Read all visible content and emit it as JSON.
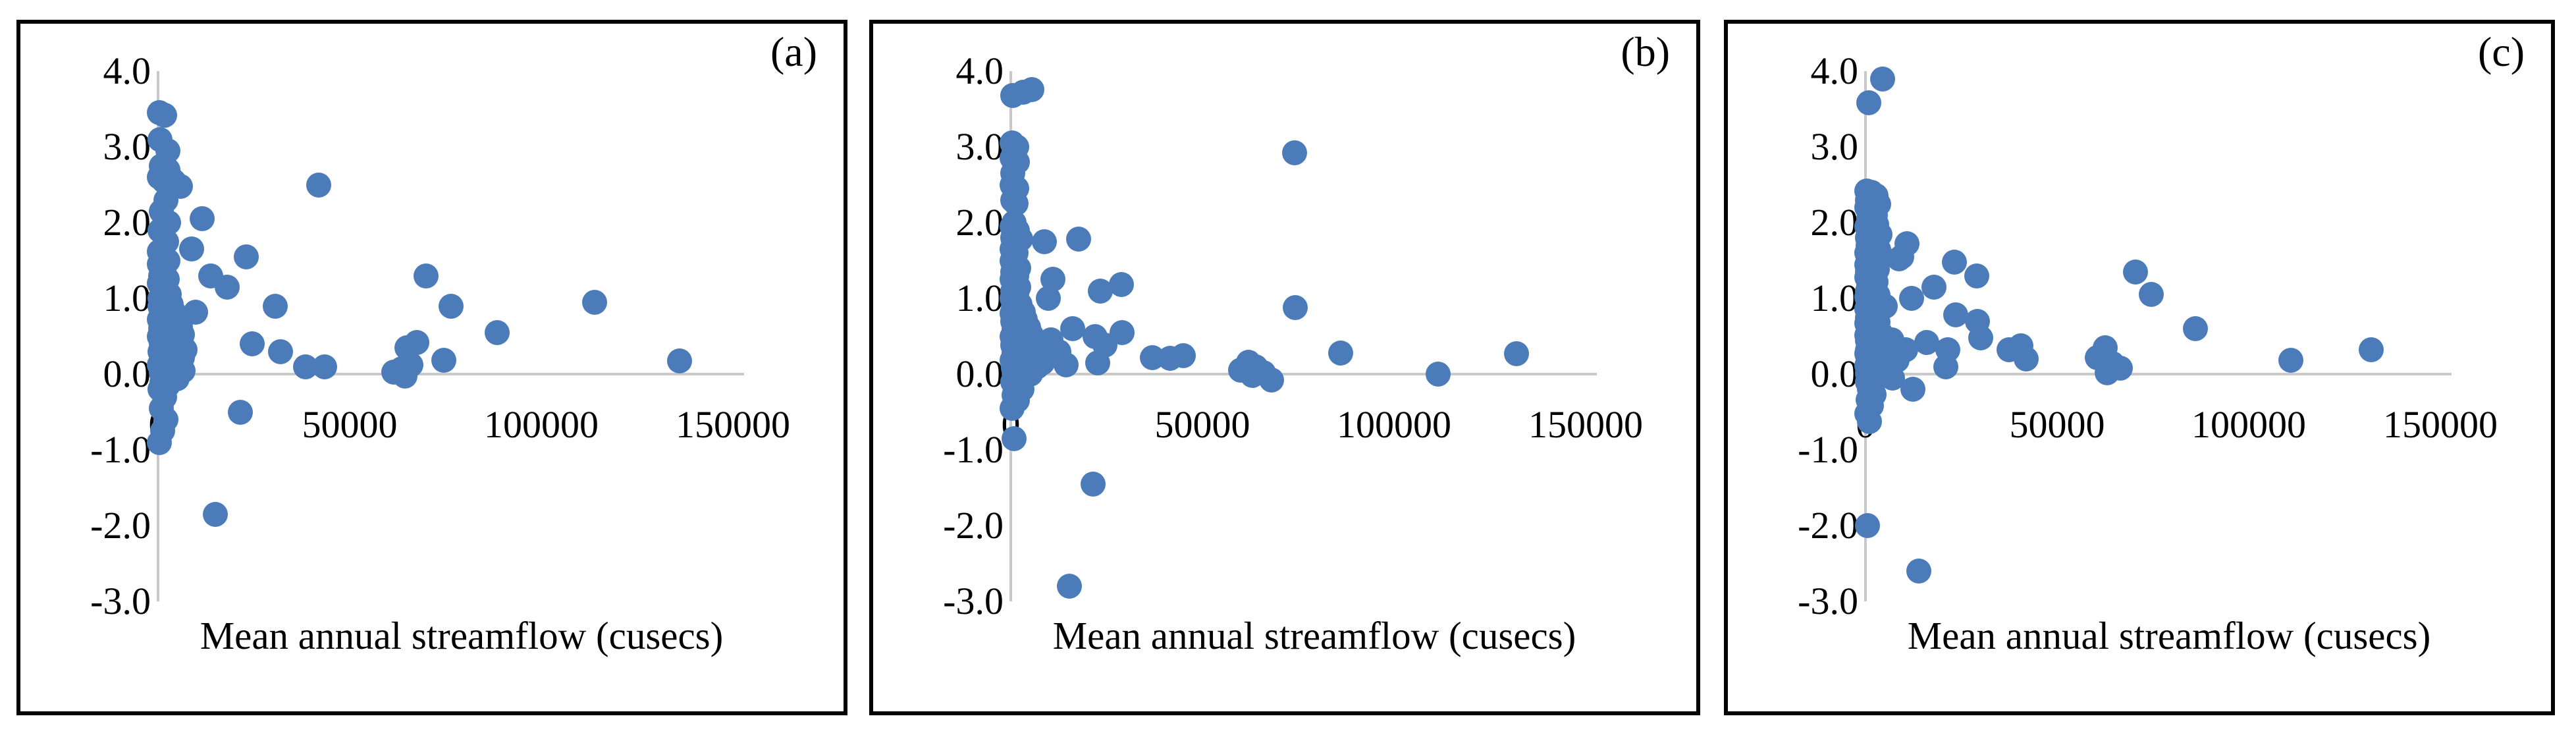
{
  "figure": {
    "marker_color": "#4B7CB9",
    "axis_line_color": "#C9C9C9",
    "border_color": "#000000",
    "background_color": "#FFFFFF"
  },
  "chart_data": [
    {
      "type": "scatter",
      "panel_label": "(a)",
      "xlabel": "Mean annual streamflow (cusecs)",
      "x_tick_labels": [
        "0",
        "50000",
        "100000",
        "150000"
      ],
      "y_tick_labels": [
        "4.0",
        "3.0",
        "2.0",
        "1.0",
        "0.0",
        "-1.0",
        "-2.0",
        "-3.0"
      ],
      "xlim": [
        0,
        153000
      ],
      "ylim": [
        -3.0,
        4.0
      ],
      "grid": false,
      "legend": "none",
      "points": [
        [
          300,
          3.45
        ],
        [
          1800,
          3.42
        ],
        [
          500,
          3.1
        ],
        [
          2500,
          2.95
        ],
        [
          900,
          2.75
        ],
        [
          2600,
          2.7
        ],
        [
          400,
          2.6
        ],
        [
          3500,
          2.58
        ],
        [
          1500,
          2.55
        ],
        [
          4200,
          2.55
        ],
        [
          5800,
          2.48
        ],
        [
          2000,
          2.3
        ],
        [
          800,
          2.15
        ],
        [
          2700,
          2.0
        ],
        [
          600,
          1.9
        ],
        [
          2200,
          1.75
        ],
        [
          300,
          1.62
        ],
        [
          1200,
          1.55
        ],
        [
          2600,
          1.5
        ],
        [
          400,
          1.45
        ],
        [
          1500,
          1.35
        ],
        [
          700,
          1.3
        ],
        [
          2400,
          1.25
        ],
        [
          300,
          1.2
        ],
        [
          1100,
          1.15
        ],
        [
          1900,
          1.1
        ],
        [
          2900,
          1.05
        ],
        [
          500,
          1.0
        ],
        [
          1400,
          0.98
        ],
        [
          2300,
          0.95
        ],
        [
          3400,
          0.92
        ],
        [
          600,
          0.9
        ],
        [
          1600,
          0.88
        ],
        [
          2800,
          0.85
        ],
        [
          4200,
          0.82
        ],
        [
          800,
          0.8
        ],
        [
          2000,
          0.78
        ],
        [
          3600,
          0.75
        ],
        [
          5200,
          0.72
        ],
        [
          300,
          0.72
        ],
        [
          1200,
          0.7
        ],
        [
          2500,
          0.68
        ],
        [
          4000,
          0.66
        ],
        [
          5800,
          0.63
        ],
        [
          700,
          0.6
        ],
        [
          1800,
          0.58
        ],
        [
          3200,
          0.56
        ],
        [
          4800,
          0.54
        ],
        [
          6400,
          0.52
        ],
        [
          400,
          0.5
        ],
        [
          1500,
          0.48
        ],
        [
          2900,
          0.46
        ],
        [
          4400,
          0.44
        ],
        [
          6000,
          0.42
        ],
        [
          900,
          0.4
        ],
        [
          2100,
          0.38
        ],
        [
          3700,
          0.36
        ],
        [
          5400,
          0.34
        ],
        [
          7000,
          0.32
        ],
        [
          500,
          0.3
        ],
        [
          1600,
          0.28
        ],
        [
          3100,
          0.26
        ],
        [
          4700,
          0.24
        ],
        [
          6300,
          0.22
        ],
        [
          1000,
          0.2
        ],
        [
          2300,
          0.18
        ],
        [
          3900,
          0.16
        ],
        [
          5600,
          0.14
        ],
        [
          300,
          0.12
        ],
        [
          1300,
          0.1
        ],
        [
          2700,
          0.08
        ],
        [
          4300,
          0.06
        ],
        [
          6600,
          0.04
        ],
        [
          800,
          0.02
        ],
        [
          1900,
          0.0
        ],
        [
          3400,
          -0.03
        ],
        [
          5000,
          -0.06
        ],
        [
          1100,
          -0.1
        ],
        [
          2500,
          -0.15
        ],
        [
          600,
          -0.2
        ],
        [
          1700,
          -0.3
        ],
        [
          900,
          -0.45
        ],
        [
          2000,
          -0.6
        ],
        [
          1200,
          -0.75
        ],
        [
          400,
          -0.9
        ],
        [
          8700,
          1.65
        ],
        [
          11500,
          2.05
        ],
        [
          13700,
          1.3
        ],
        [
          18000,
          1.15
        ],
        [
          23000,
          1.55
        ],
        [
          42000,
          2.5
        ],
        [
          9800,
          0.82
        ],
        [
          30500,
          0.9
        ],
        [
          24500,
          0.4
        ],
        [
          32000,
          0.3
        ],
        [
          38500,
          0.1
        ],
        [
          43500,
          0.1
        ],
        [
          21500,
          -0.5
        ],
        [
          15000,
          -1.85
        ],
        [
          61500,
          0.03
        ],
        [
          63500,
          0.07
        ],
        [
          66000,
          0.12
        ],
        [
          64500,
          -0.03
        ],
        [
          67500,
          0.42
        ],
        [
          65000,
          0.35
        ],
        [
          70000,
          1.3
        ],
        [
          74500,
          0.18
        ],
        [
          76500,
          0.9
        ],
        [
          88500,
          0.55
        ],
        [
          114000,
          0.95
        ],
        [
          136000,
          0.17
        ]
      ]
    },
    {
      "type": "scatter",
      "panel_label": "(b)",
      "xlabel": "Mean annual streamflow (cusecs)",
      "x_tick_labels": [
        "0",
        "50000",
        "100000",
        "150000"
      ],
      "y_tick_labels": [
        "4.0",
        "3.0",
        "2.0",
        "1.0",
        "0.0",
        "-1.0",
        "-2.0",
        "-3.0"
      ],
      "xlim": [
        0,
        153000
      ],
      "ylim": [
        -3.0,
        4.0
      ],
      "grid": false,
      "legend": "none",
      "points": [
        [
          600,
          3.68
        ],
        [
          3300,
          3.72
        ],
        [
          5500,
          3.76
        ],
        [
          300,
          3.05
        ],
        [
          1500,
          3.0
        ],
        [
          400,
          2.85
        ],
        [
          1800,
          2.8
        ],
        [
          600,
          2.65
        ],
        [
          300,
          2.5
        ],
        [
          1600,
          2.45
        ],
        [
          500,
          2.3
        ],
        [
          1300,
          2.25
        ],
        [
          800,
          2.0
        ],
        [
          300,
          1.95
        ],
        [
          1700,
          1.9
        ],
        [
          600,
          1.8
        ],
        [
          2500,
          1.78
        ],
        [
          400,
          1.65
        ],
        [
          1400,
          1.6
        ],
        [
          300,
          1.5
        ],
        [
          1100,
          1.45
        ],
        [
          2100,
          1.4
        ],
        [
          500,
          1.35
        ],
        [
          1600,
          1.3
        ],
        [
          300,
          1.25
        ],
        [
          900,
          1.2
        ],
        [
          2000,
          1.15
        ],
        [
          600,
          1.1
        ],
        [
          1500,
          1.05
        ],
        [
          400,
          1.0
        ],
        [
          1200,
          0.95
        ],
        [
          2400,
          0.92
        ],
        [
          700,
          0.88
        ],
        [
          1800,
          0.85
        ],
        [
          3200,
          0.82
        ],
        [
          300,
          0.8
        ],
        [
          1000,
          0.78
        ],
        [
          2200,
          0.75
        ],
        [
          3800,
          0.72
        ],
        [
          500,
          0.7
        ],
        [
          1400,
          0.68
        ],
        [
          2800,
          0.65
        ],
        [
          4600,
          0.62
        ],
        [
          800,
          0.6
        ],
        [
          1900,
          0.58
        ],
        [
          3400,
          0.55
        ],
        [
          5400,
          0.52
        ],
        [
          300,
          0.5
        ],
        [
          1100,
          0.48
        ],
        [
          2400,
          0.45
        ],
        [
          4000,
          0.42
        ],
        [
          6200,
          0.4
        ],
        [
          600,
          0.38
        ],
        [
          1600,
          0.35
        ],
        [
          3000,
          0.32
        ],
        [
          5000,
          0.3
        ],
        [
          7200,
          0.3
        ],
        [
          900,
          0.28
        ],
        [
          2000,
          0.25
        ],
        [
          3600,
          0.22
        ],
        [
          5800,
          0.2
        ],
        [
          400,
          0.18
        ],
        [
          1300,
          0.15
        ],
        [
          2700,
          0.12
        ],
        [
          4400,
          0.1
        ],
        [
          6800,
          0.1
        ],
        [
          8200,
          0.15
        ],
        [
          700,
          0.08
        ],
        [
          1700,
          0.05
        ],
        [
          3200,
          0.02
        ],
        [
          5200,
          0.0
        ],
        [
          1000,
          -0.02
        ],
        [
          2200,
          -0.05
        ],
        [
          500,
          -0.1
        ],
        [
          1500,
          -0.15
        ],
        [
          2900,
          -0.2
        ],
        [
          800,
          -0.28
        ],
        [
          1800,
          -0.35
        ],
        [
          400,
          -0.45
        ],
        [
          8800,
          1.75
        ],
        [
          17700,
          1.78
        ],
        [
          11000,
          1.25
        ],
        [
          9800,
          1.0
        ],
        [
          23300,
          1.1
        ],
        [
          28800,
          1.18
        ],
        [
          16200,
          0.6
        ],
        [
          22000,
          0.5
        ],
        [
          29000,
          0.55
        ],
        [
          10500,
          0.45
        ],
        [
          12500,
          0.3
        ],
        [
          14500,
          0.12
        ],
        [
          22700,
          0.15
        ],
        [
          24500,
          0.38
        ],
        [
          37000,
          0.22
        ],
        [
          41500,
          0.21
        ],
        [
          45000,
          0.24
        ],
        [
          60000,
          0.05
        ],
        [
          62000,
          0.16
        ],
        [
          64000,
          0.1
        ],
        [
          66000,
          0.02
        ],
        [
          68000,
          -0.08
        ],
        [
          63000,
          -0.02
        ],
        [
          74000,
          2.92
        ],
        [
          74200,
          0.88
        ],
        [
          86000,
          0.28
        ],
        [
          111500,
          0.0
        ],
        [
          132000,
          0.27
        ],
        [
          800,
          -0.85
        ],
        [
          21500,
          -1.45
        ],
        [
          15300,
          -2.8
        ]
      ]
    },
    {
      "type": "scatter",
      "panel_label": "(c)",
      "xlabel": "Mean annual streamflow (cusecs)",
      "x_tick_labels": [
        "0",
        "50000",
        "100000",
        "150000"
      ],
      "y_tick_labels": [
        "4.0",
        "3.0",
        "2.0",
        "1.0",
        "0.0",
        "-1.0",
        "-2.0",
        "-3.0"
      ],
      "xlim": [
        0,
        153000
      ],
      "ylim": [
        -3.0,
        4.0
      ],
      "grid": false,
      "legend": "none",
      "points": [
        [
          4500,
          3.9
        ],
        [
          800,
          3.58
        ],
        [
          300,
          2.42
        ],
        [
          1500,
          2.4
        ],
        [
          2800,
          2.36
        ],
        [
          600,
          2.3
        ],
        [
          1900,
          2.27
        ],
        [
          3400,
          2.24
        ],
        [
          400,
          2.2
        ],
        [
          1300,
          2.15
        ],
        [
          2500,
          2.1
        ],
        [
          800,
          2.05
        ],
        [
          1800,
          2.0
        ],
        [
          3000,
          1.97
        ],
        [
          300,
          1.95
        ],
        [
          1100,
          1.9
        ],
        [
          2200,
          1.87
        ],
        [
          3800,
          1.84
        ],
        [
          500,
          1.8
        ],
        [
          1600,
          1.77
        ],
        [
          2900,
          1.74
        ],
        [
          700,
          1.7
        ],
        [
          2000,
          1.67
        ],
        [
          3500,
          1.64
        ],
        [
          400,
          1.6
        ],
        [
          1200,
          1.57
        ],
        [
          2600,
          1.54
        ],
        [
          900,
          1.5
        ],
        [
          2100,
          1.47
        ],
        [
          300,
          1.44
        ],
        [
          1500,
          1.41
        ],
        [
          3100,
          1.38
        ],
        [
          600,
          1.35
        ],
        [
          1800,
          1.32
        ],
        [
          400,
          1.28
        ],
        [
          1300,
          1.25
        ],
        [
          2700,
          1.22
        ],
        [
          800,
          1.18
        ],
        [
          2000,
          1.15
        ],
        [
          500,
          1.1
        ],
        [
          1500,
          1.07
        ],
        [
          3200,
          1.04
        ],
        [
          300,
          1.02
        ],
        [
          1100,
          1.0
        ],
        [
          2300,
          0.97
        ],
        [
          700,
          0.94
        ],
        [
          1700,
          0.91
        ],
        [
          3600,
          0.88
        ],
        [
          400,
          0.86
        ],
        [
          1300,
          0.84
        ],
        [
          2800,
          0.81
        ],
        [
          900,
          0.79
        ],
        [
          2000,
          0.76
        ],
        [
          500,
          0.74
        ],
        [
          1500,
          0.71
        ],
        [
          3300,
          0.69
        ],
        [
          300,
          0.67
        ],
        [
          1200,
          0.64
        ],
        [
          2500,
          0.61
        ],
        [
          800,
          0.59
        ],
        [
          1800,
          0.56
        ],
        [
          4000,
          0.54
        ],
        [
          400,
          0.51
        ],
        [
          1400,
          0.49
        ],
        [
          2900,
          0.47
        ],
        [
          600,
          0.44
        ],
        [
          1600,
          0.41
        ],
        [
          3400,
          0.39
        ],
        [
          1000,
          0.37
        ],
        [
          2200,
          0.34
        ],
        [
          500,
          0.31
        ],
        [
          1900,
          0.29
        ],
        [
          300,
          0.27
        ],
        [
          1300,
          0.24
        ],
        [
          2600,
          0.21
        ],
        [
          700,
          0.19
        ],
        [
          1700,
          0.16
        ],
        [
          3000,
          0.14
        ],
        [
          400,
          0.11
        ],
        [
          1500,
          0.09
        ],
        [
          900,
          0.06
        ],
        [
          2100,
          0.04
        ],
        [
          600,
          0.01
        ],
        [
          1400,
          -0.02
        ],
        [
          2800,
          -0.06
        ],
        [
          500,
          -0.1
        ],
        [
          1700,
          -0.14
        ],
        [
          1000,
          -0.2
        ],
        [
          2300,
          -0.27
        ],
        [
          700,
          -0.34
        ],
        [
          1600,
          -0.42
        ],
        [
          400,
          -0.52
        ],
        [
          1100,
          -0.63
        ],
        [
          5200,
          0.9
        ],
        [
          6800,
          0.45
        ],
        [
          8200,
          0.18
        ],
        [
          7000,
          -0.05
        ],
        [
          8800,
          1.52
        ],
        [
          10800,
          1.72
        ],
        [
          9500,
          1.55
        ],
        [
          23200,
          1.48
        ],
        [
          29000,
          1.3
        ],
        [
          17800,
          1.15
        ],
        [
          12000,
          1.0
        ],
        [
          23500,
          0.78
        ],
        [
          29200,
          0.7
        ],
        [
          30000,
          0.48
        ],
        [
          16000,
          0.42
        ],
        [
          21500,
          0.32
        ],
        [
          10500,
          0.32
        ],
        [
          21000,
          0.1
        ],
        [
          12400,
          -0.2
        ],
        [
          37500,
          0.32
        ],
        [
          42000,
          0.2
        ],
        [
          40500,
          0.37
        ],
        [
          60500,
          0.22
        ],
        [
          62500,
          0.35
        ],
        [
          64500,
          0.14
        ],
        [
          66500,
          0.08
        ],
        [
          63000,
          0.02
        ],
        [
          70500,
          1.35
        ],
        [
          74500,
          1.05
        ],
        [
          86000,
          0.6
        ],
        [
          111000,
          0.18
        ],
        [
          132000,
          0.32
        ],
        [
          500,
          -2.0
        ],
        [
          14000,
          -2.6
        ]
      ]
    }
  ]
}
